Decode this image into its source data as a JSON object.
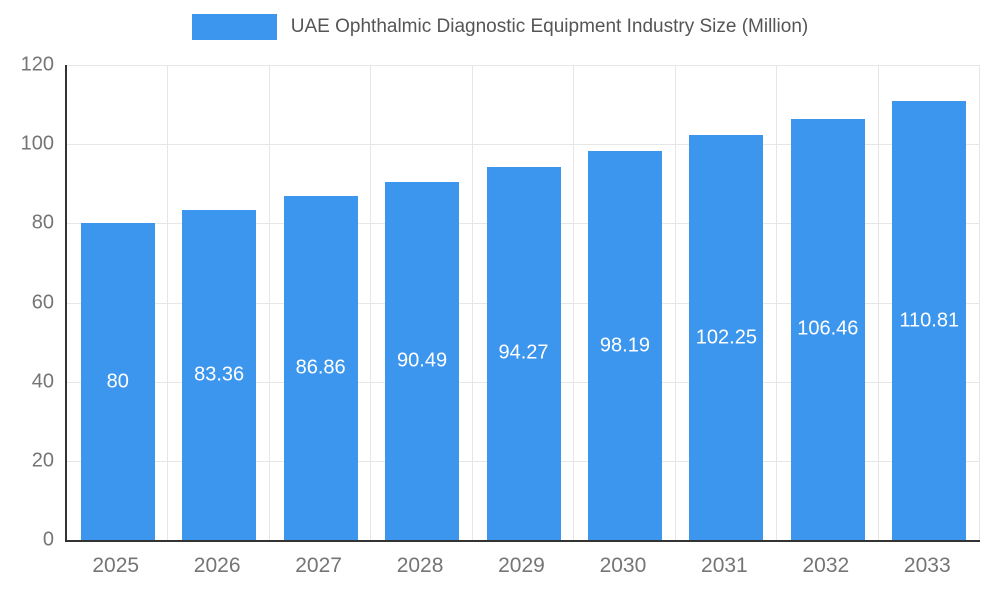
{
  "legend": {
    "title": "UAE Ophthalmic Diagnostic Equipment Industry Size (Million)"
  },
  "chart_data": {
    "type": "bar",
    "title": "UAE Ophthalmic Diagnostic Equipment Industry Size (Million)",
    "categories": [
      "2025",
      "2026",
      "2027",
      "2028",
      "2029",
      "2030",
      "2031",
      "2032",
      "2033"
    ],
    "values": [
      80,
      83.36,
      86.86,
      90.49,
      94.27,
      98.19,
      102.25,
      106.46,
      110.81
    ],
    "value_labels": [
      "80",
      "83.36",
      "86.86",
      "90.49",
      "94.27",
      "98.19",
      "102.25",
      "106.46",
      "110.81"
    ],
    "xlabel": "",
    "ylabel": "",
    "ylim": [
      0,
      120
    ],
    "ytick_step": 20,
    "ytick_labels": [
      "0",
      "20",
      "40",
      "60",
      "80",
      "100",
      "120"
    ],
    "grid": true,
    "legend_position": "top",
    "bar_color": "#3d96ee",
    "value_label_color": "#ffffff",
    "axis_text_color": "#757575",
    "title_color": "#555555",
    "gridline_color": "#e6e6e6",
    "axis_line_color": "#333333"
  }
}
